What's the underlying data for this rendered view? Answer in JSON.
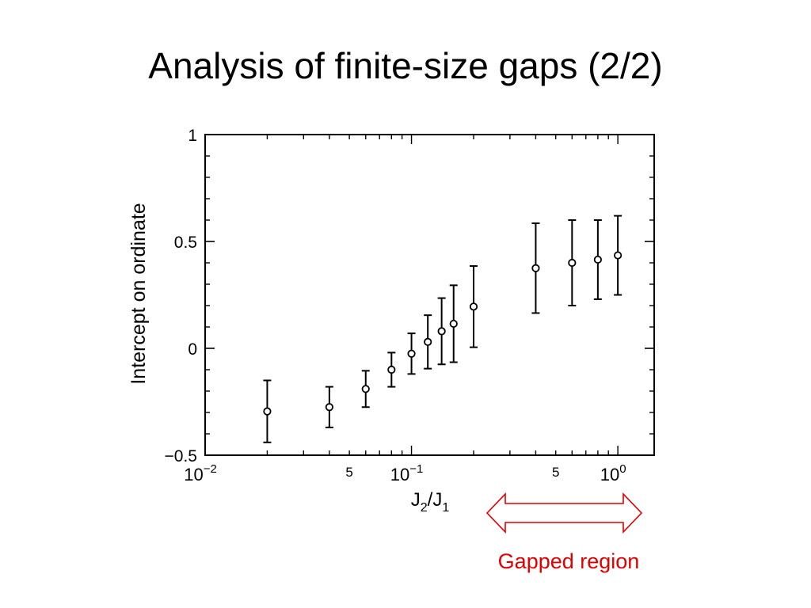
{
  "slide": {
    "title": "Analysis of finite-size gaps (2/2)"
  },
  "annotation": {
    "label": "Gapped region",
    "color": "#e00000"
  },
  "chart_data": {
    "type": "scatter",
    "title": "",
    "xlabel": {
      "base": "J",
      "sub1": "2",
      "slash": "/J",
      "sub2": "1"
    },
    "ylabel": "Intercept  on  ordinate",
    "xscale": "log",
    "xlim": [
      0.01,
      1.5
    ],
    "ylim": [
      -0.5,
      1
    ],
    "grid": false,
    "y_ticks": [
      {
        "value": -0.5,
        "label": "−0.5"
      },
      {
        "value": 0,
        "label": "0"
      },
      {
        "value": 0.5,
        "label": "0.5"
      },
      {
        "value": 1,
        "label": "1"
      }
    ],
    "x_ticks": [
      {
        "value": 0.01,
        "base": "10",
        "exp": "−2"
      },
      {
        "value": 0.05,
        "base": "5",
        "exp": ""
      },
      {
        "value": 0.1,
        "base": "10",
        "exp": "−1"
      },
      {
        "value": 0.5,
        "base": "5",
        "exp": ""
      },
      {
        "value": 1,
        "base": "10",
        "exp": "0"
      }
    ],
    "points": [
      {
        "x": 0.02,
        "y": -0.295,
        "err": 0.145
      },
      {
        "x": 0.04,
        "y": -0.275,
        "err": 0.095
      },
      {
        "x": 0.06,
        "y": -0.19,
        "err": 0.085
      },
      {
        "x": 0.08,
        "y": -0.1,
        "err": 0.08
      },
      {
        "x": 0.1,
        "y": -0.025,
        "err": 0.095
      },
      {
        "x": 0.12,
        "y": 0.03,
        "err": 0.125
      },
      {
        "x": 0.14,
        "y": 0.08,
        "err": 0.155
      },
      {
        "x": 0.16,
        "y": 0.115,
        "err": 0.18
      },
      {
        "x": 0.2,
        "y": 0.195,
        "err": 0.19
      },
      {
        "x": 0.4,
        "y": 0.375,
        "err": 0.21
      },
      {
        "x": 0.6,
        "y": 0.4,
        "err": 0.2
      },
      {
        "x": 0.8,
        "y": 0.415,
        "err": 0.185
      },
      {
        "x": 1.0,
        "y": 0.435,
        "err": 0.185
      }
    ]
  }
}
